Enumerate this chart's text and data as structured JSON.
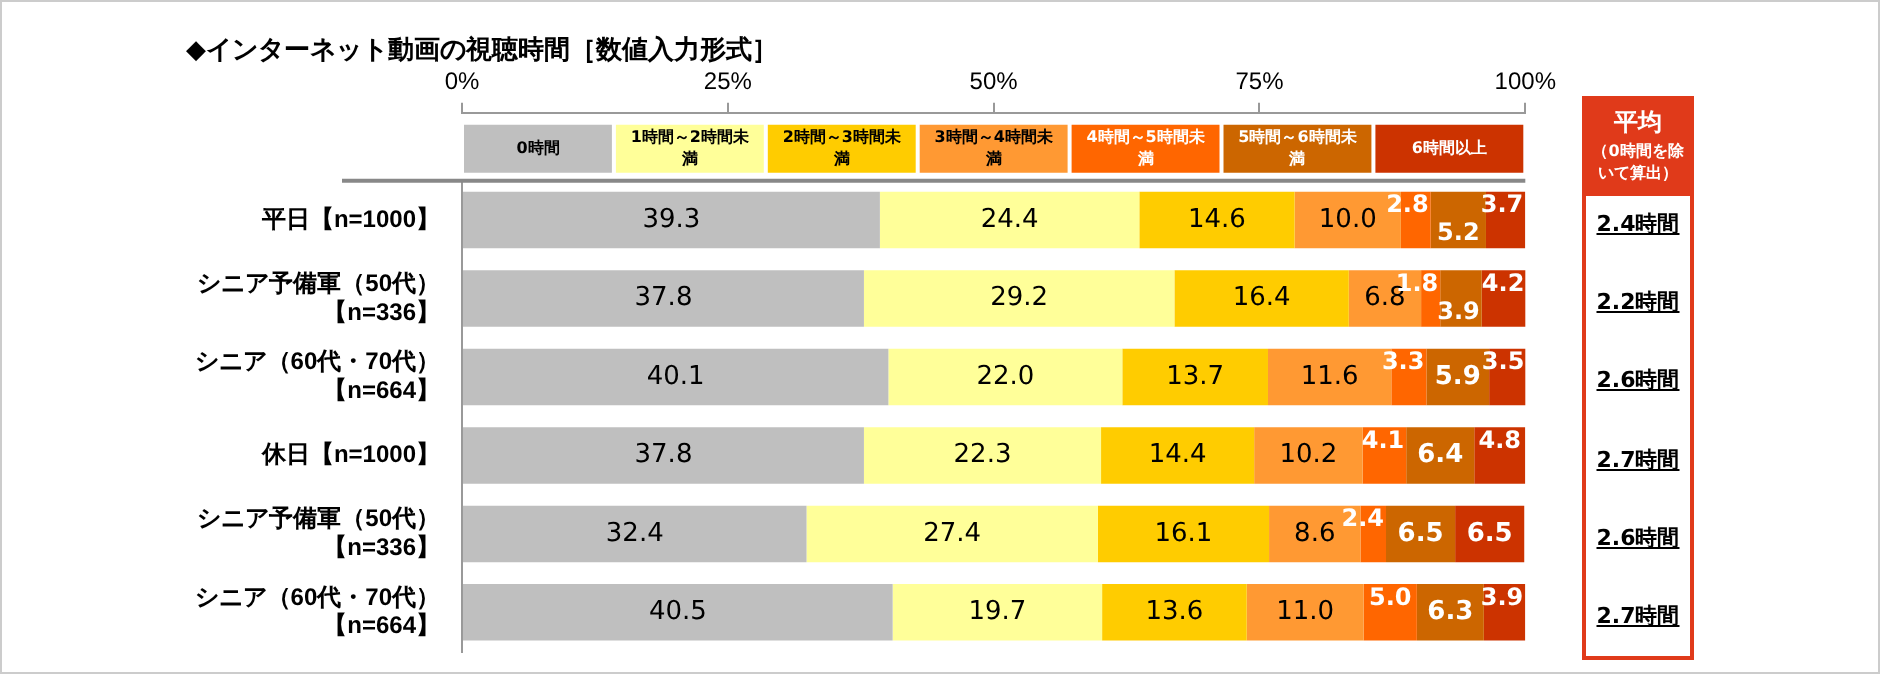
{
  "chart_data": {
    "type": "bar",
    "orientation": "horizontal",
    "stacked": true,
    "title": "◆インターネット動画の視聴時間［数値入力形式］",
    "categories": [
      "平日【n=1000】",
      "シニア予備軍（50代）【n=336】",
      "シニア（60代・70代）【n=664】",
      "休日【n=1000】",
      "シニア予備軍（50代）【n=336】",
      "シニア（60代・70代）【n=664】"
    ],
    "series": [
      {
        "name": "0時間",
        "color": "#bfbfbf",
        "values": [
          39.3,
          37.8,
          40.1,
          37.8,
          32.4,
          40.5
        ],
        "value_labels": [
          "39.3",
          "37.8",
          "40.1",
          "37.8",
          "32.4",
          "40.5"
        ]
      },
      {
        "name": "1時間～2時間未満",
        "color": "#ffff99",
        "values": [
          24.4,
          29.2,
          22.0,
          22.3,
          27.4,
          19.7
        ],
        "value_labels": [
          "24.4",
          "29.2",
          "22.0",
          "22.3",
          "27.4",
          "19.7"
        ]
      },
      {
        "name": "2時間～3時間未満",
        "color": "#ffcc00",
        "values": [
          14.6,
          16.4,
          13.7,
          14.4,
          16.1,
          13.6
        ],
        "value_labels": [
          "14.6",
          "16.4",
          "13.7",
          "14.4",
          "16.1",
          "13.6"
        ]
      },
      {
        "name": "3時間～4時間未満",
        "color": "#ff9933",
        "values": [
          10.0,
          6.8,
          11.6,
          10.2,
          8.6,
          11.0
        ],
        "value_labels": [
          "10.0",
          "6.8",
          "11.6",
          "10.2",
          "8.6",
          "11.0"
        ]
      },
      {
        "name": "4時間～5時間未満",
        "color": "#ff6600",
        "values": [
          2.8,
          1.8,
          3.3,
          4.1,
          2.4,
          5.0
        ],
        "value_labels": [
          "2.8",
          "1.8",
          "3.3",
          "4.1",
          "2.4",
          "5.0"
        ]
      },
      {
        "name": "5時間～6時間未満",
        "color": "#cc6600",
        "values": [
          5.2,
          3.9,
          5.9,
          6.4,
          6.5,
          6.3
        ],
        "value_labels": [
          "5.2",
          "3.9",
          "5.9",
          "6.4",
          "6.5",
          "6.3"
        ]
      },
      {
        "name": "6時間以上",
        "color": "#cc3300",
        "values": [
          3.7,
          4.2,
          3.5,
          4.8,
          6.5,
          3.9
        ],
        "value_labels": [
          "3.7",
          "4.2",
          "3.5",
          "4.8",
          "6.5",
          "3.9"
        ]
      }
    ],
    "xlim": [
      0,
      100
    ],
    "xticks": [
      {
        "value": 0,
        "label": "0%"
      },
      {
        "value": 25,
        "label": "25%"
      },
      {
        "value": 50,
        "label": "50%"
      },
      {
        "value": 75,
        "label": "75%"
      },
      {
        "value": 100,
        "label": "100%"
      }
    ],
    "legend": "top",
    "grid": false,
    "annotations": [
      "平均",
      "（0時間を除いて算出）",
      "2.4時間",
      "2.2時間",
      "2.6時間",
      "2.7時間",
      "2.6時間",
      "2.7時間"
    ]
  }
}
